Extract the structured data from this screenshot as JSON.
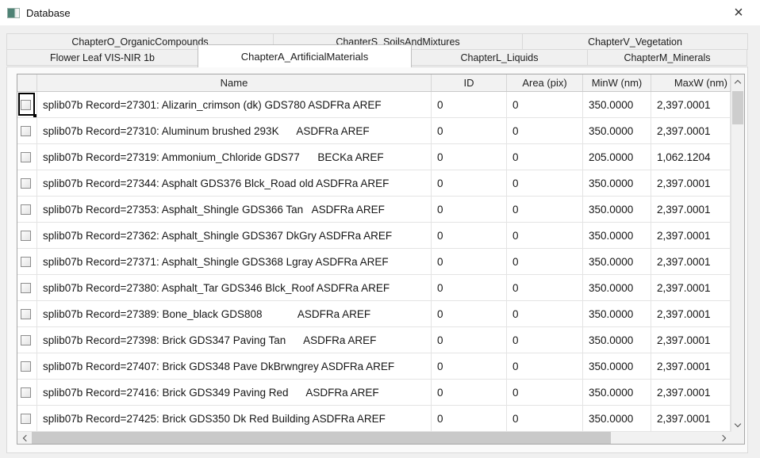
{
  "window": {
    "title": "Database",
    "close_glyph": "×"
  },
  "colors": {
    "app_icon_teal": "#4d8274",
    "dialog_body_bg": "#f0f0f0",
    "active_tab_bg": "#ffffff",
    "grid_header_bg": "#f2f2f2",
    "scrollbar_thumb": "#cdcdcd",
    "focus_rect": "#000000"
  },
  "tabs": {
    "row1": [
      {
        "label": "ChapterO_OrganicCompounds"
      },
      {
        "label": "ChapterS_SoilsAndMixtures"
      },
      {
        "label": "ChapterV_Vegetation"
      }
    ],
    "row2": [
      {
        "label": "Flower Leaf VIS-NIR 1b",
        "active": false
      },
      {
        "label": "ChapterA_ArtificialMaterials",
        "active": true
      },
      {
        "label": "ChapterL_Liquids",
        "active": false
      },
      {
        "label": "ChapterM_Minerals",
        "active": false
      }
    ]
  },
  "grid": {
    "columns": {
      "name": "Name",
      "id": "ID",
      "area": "Area (pix)",
      "minw": "MinW (nm)",
      "maxw": "MaxW (nm)"
    },
    "focused_row": 0,
    "rows": [
      {
        "name": "splib07b Record=27301: Alizarin_crimson (dk) GDS780 ASDFRa AREF",
        "id": "0",
        "area": "0",
        "minw": "350.0000",
        "maxw": "2,397.0001",
        "checked": false
      },
      {
        "name": "splib07b Record=27310: Aluminum brushed 293K      ASDFRa AREF",
        "id": "0",
        "area": "0",
        "minw": "350.0000",
        "maxw": "2,397.0001",
        "checked": false
      },
      {
        "name": "splib07b Record=27319: Ammonium_Chloride GDS77      BECKa AREF",
        "id": "0",
        "area": "0",
        "minw": "205.0000",
        "maxw": "1,062.1204",
        "checked": false
      },
      {
        "name": "splib07b Record=27344: Asphalt GDS376 Blck_Road old ASDFRa AREF",
        "id": "0",
        "area": "0",
        "minw": "350.0000",
        "maxw": "2,397.0001",
        "checked": false
      },
      {
        "name": "splib07b Record=27353: Asphalt_Shingle GDS366 Tan   ASDFRa AREF",
        "id": "0",
        "area": "0",
        "minw": "350.0000",
        "maxw": "2,397.0001",
        "checked": false
      },
      {
        "name": "splib07b Record=27362: Asphalt_Shingle GDS367 DkGry ASDFRa AREF",
        "id": "0",
        "area": "0",
        "minw": "350.0000",
        "maxw": "2,397.0001",
        "checked": false
      },
      {
        "name": "splib07b Record=27371: Asphalt_Shingle GDS368 Lgray ASDFRa AREF",
        "id": "0",
        "area": "0",
        "minw": "350.0000",
        "maxw": "2,397.0001",
        "checked": false
      },
      {
        "name": "splib07b Record=27380: Asphalt_Tar GDS346 Blck_Roof ASDFRa AREF",
        "id": "0",
        "area": "0",
        "minw": "350.0000",
        "maxw": "2,397.0001",
        "checked": false
      },
      {
        "name": "splib07b Record=27389: Bone_black GDS808            ASDFRa AREF",
        "id": "0",
        "area": "0",
        "minw": "350.0000",
        "maxw": "2,397.0001",
        "checked": false
      },
      {
        "name": "splib07b Record=27398: Brick GDS347 Paving Tan      ASDFRa AREF",
        "id": "0",
        "area": "0",
        "minw": "350.0000",
        "maxw": "2,397.0001",
        "checked": false
      },
      {
        "name": "splib07b Record=27407: Brick GDS348 Pave DkBrwngrey ASDFRa AREF",
        "id": "0",
        "area": "0",
        "minw": "350.0000",
        "maxw": "2,397.0001",
        "checked": false
      },
      {
        "name": "splib07b Record=27416: Brick GDS349 Paving Red      ASDFRa AREF",
        "id": "0",
        "area": "0",
        "minw": "350.0000",
        "maxw": "2,397.0001",
        "checked": false
      },
      {
        "name": "splib07b Record=27425: Brick GDS350 Dk Red Building ASDFRa AREF",
        "id": "0",
        "area": "0",
        "minw": "350.0000",
        "maxw": "2,397.0001",
        "checked": false
      }
    ]
  }
}
